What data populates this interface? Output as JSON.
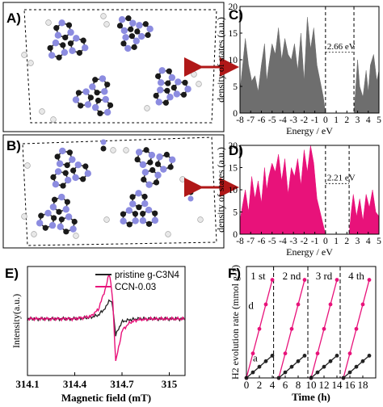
{
  "panels": {
    "A": {
      "label": "A)"
    },
    "B": {
      "label": "B)"
    }
  },
  "chart_data": [
    {
      "id": "C",
      "panel_label": "C)",
      "type": "area",
      "xlabel": "Energy / eV",
      "ylabel": "density of states (a.u.)",
      "xlim": [
        -8,
        5
      ],
      "ylim": [
        0,
        20
      ],
      "xticks": [
        -8,
        -7,
        -6,
        -5,
        -4,
        -3,
        -2,
        -1,
        0,
        1,
        2,
        3,
        4,
        5
      ],
      "yticks": [
        0,
        5,
        10,
        15,
        20
      ],
      "color": "#6e6e6e",
      "annotation": {
        "text": "2.66 eV",
        "from": 0,
        "to": 2.66
      },
      "dashed_lines": [
        0,
        2.66
      ],
      "x": [
        -8,
        -7.8,
        -7.5,
        -7.2,
        -6.9,
        -6.6,
        -6.3,
        -6.0,
        -5.7,
        -5.5,
        -5.3,
        -5.0,
        -4.7,
        -4.4,
        -4.1,
        -3.8,
        -3.5,
        -3.2,
        -2.9,
        -2.6,
        -2.3,
        -2.0,
        -1.7,
        -1.4,
        -1.1,
        -0.8,
        -0.5,
        -0.2,
        0,
        2.66,
        2.8,
        3.0,
        3.2,
        3.5,
        3.8,
        4.0,
        4.2,
        4.5,
        4.8,
        5.0
      ],
      "y": [
        4,
        8,
        14,
        9,
        6,
        7,
        4,
        9,
        13,
        6,
        9,
        13,
        11,
        16,
        10,
        14,
        11,
        10,
        13,
        8,
        15,
        6,
        18,
        12,
        16,
        9,
        6,
        3,
        0,
        0,
        4,
        10,
        5,
        3,
        8,
        4,
        9,
        11,
        6,
        8
      ]
    },
    {
      "id": "D",
      "panel_label": "D)",
      "type": "area",
      "xlabel": "Energy / eV",
      "ylabel": "density of states (a.u.)",
      "xlim": [
        -8,
        5
      ],
      "ylim": [
        0,
        20
      ],
      "xticks": [
        -8,
        -7,
        -6,
        -5,
        -4,
        -3,
        -2,
        -1,
        0,
        1,
        2,
        3,
        4,
        5
      ],
      "yticks": [
        0,
        5,
        10,
        15,
        20
      ],
      "color": "#e8127a",
      "annotation": {
        "text": "2.21 eV",
        "from": 0,
        "to": 2.21
      },
      "dashed_lines": [
        0,
        2.21
      ],
      "x": [
        -8,
        -7.8,
        -7.5,
        -7.2,
        -6.9,
        -6.6,
        -6.3,
        -6.0,
        -5.7,
        -5.5,
        -5.3,
        -5.0,
        -4.7,
        -4.4,
        -4.1,
        -3.8,
        -3.5,
        -3.2,
        -2.9,
        -2.6,
        -2.3,
        -2.0,
        -1.7,
        -1.4,
        -1.1,
        -0.8,
        -0.5,
        -0.2,
        0,
        2.21,
        2.4,
        2.6,
        2.9,
        3.2,
        3.5,
        3.8,
        4.1,
        4.4,
        4.7,
        5.0
      ],
      "y": [
        3,
        6,
        10,
        5,
        13,
        8,
        12,
        7,
        15,
        10,
        13,
        16,
        14,
        18,
        12,
        17,
        9,
        15,
        13,
        17,
        11,
        19,
        14,
        20,
        16,
        8,
        5,
        2,
        0,
        0,
        5,
        9,
        4,
        8,
        3,
        9,
        6,
        10,
        5,
        4
      ]
    },
    {
      "id": "E",
      "panel_label": "E)",
      "type": "line",
      "xlabel": "Magnetic field (mT)",
      "ylabel": "Intensity(a.u.)",
      "xlim": [
        314.1,
        315.1
      ],
      "xticks": [
        314.1,
        314.4,
        314.7,
        315.0
      ],
      "legend_position": "top-right",
      "series": [
        {
          "name": "pristine g-C3N4",
          "color": "#222222",
          "x": [
            314.1,
            314.2,
            314.3,
            314.4,
            314.5,
            314.55,
            314.6,
            314.62,
            314.64,
            314.66,
            314.68,
            314.7,
            314.75,
            314.8,
            314.9,
            315.0,
            315.1
          ],
          "y": [
            0,
            0,
            0,
            0,
            0.03,
            0.08,
            0.25,
            0.42,
            0.3,
            -0.35,
            -0.2,
            -0.06,
            -0.02,
            0,
            0,
            0,
            0
          ]
        },
        {
          "name": "CCN-0.03",
          "color": "#e8127a",
          "x": [
            314.1,
            314.2,
            314.3,
            314.4,
            314.5,
            314.55,
            314.6,
            314.62,
            314.64,
            314.66,
            314.68,
            314.7,
            314.75,
            314.8,
            314.9,
            315.0,
            315.1
          ],
          "y": [
            0,
            0,
            0,
            0,
            0.05,
            0.2,
            0.7,
            1.0,
            0.45,
            -0.9,
            -0.6,
            -0.25,
            -0.08,
            -0.02,
            0,
            0,
            0
          ]
        }
      ]
    },
    {
      "id": "F",
      "panel_label": "F)",
      "type": "line",
      "xlabel": "Time (h)",
      "ylabel": "H2 evolution rate (mmol g-1)",
      "xlim": [
        0,
        20
      ],
      "ylim": [
        0,
        1
      ],
      "xticks": [
        0,
        2,
        4,
        6,
        8,
        10,
        12,
        14,
        16,
        18
      ],
      "cycle_boundaries": [
        4.2,
        9.5,
        14.5
      ],
      "cycle_labels": [
        "1 st",
        "2 nd",
        "3 rd",
        "4 th"
      ],
      "series_labels": {
        "d": "d",
        "a": "a"
      },
      "series": [
        {
          "name": "d",
          "color": "#e8127a",
          "cycles": [
            {
              "x": [
                0,
                1,
                2,
                3,
                4
              ],
              "y": [
                0,
                0.22,
                0.44,
                0.66,
                0.88
              ]
            },
            {
              "x": [
                5,
                6,
                7,
                8,
                9
              ],
              "y": [
                0,
                0.22,
                0.44,
                0.66,
                0.88
              ]
            },
            {
              "x": [
                10,
                11,
                12,
                13,
                14
              ],
              "y": [
                0,
                0.22,
                0.44,
                0.66,
                0.88
              ]
            },
            {
              "x": [
                15,
                16,
                17,
                18,
                19
              ],
              "y": [
                0,
                0.22,
                0.44,
                0.66,
                0.88
              ]
            }
          ]
        },
        {
          "name": "a",
          "color": "#222222",
          "cycles": [
            {
              "x": [
                0,
                1,
                2,
                3,
                4
              ],
              "y": [
                0,
                0.05,
                0.1,
                0.15,
                0.2
              ]
            },
            {
              "x": [
                5,
                6,
                7,
                8,
                9
              ],
              "y": [
                0,
                0.05,
                0.1,
                0.15,
                0.2
              ]
            },
            {
              "x": [
                10,
                11,
                12,
                13,
                14
              ],
              "y": [
                0,
                0.05,
                0.1,
                0.15,
                0.2
              ]
            },
            {
              "x": [
                15,
                16,
                17,
                18,
                19
              ],
              "y": [
                0,
                0.05,
                0.1,
                0.15,
                0.2
              ]
            }
          ]
        }
      ]
    }
  ]
}
